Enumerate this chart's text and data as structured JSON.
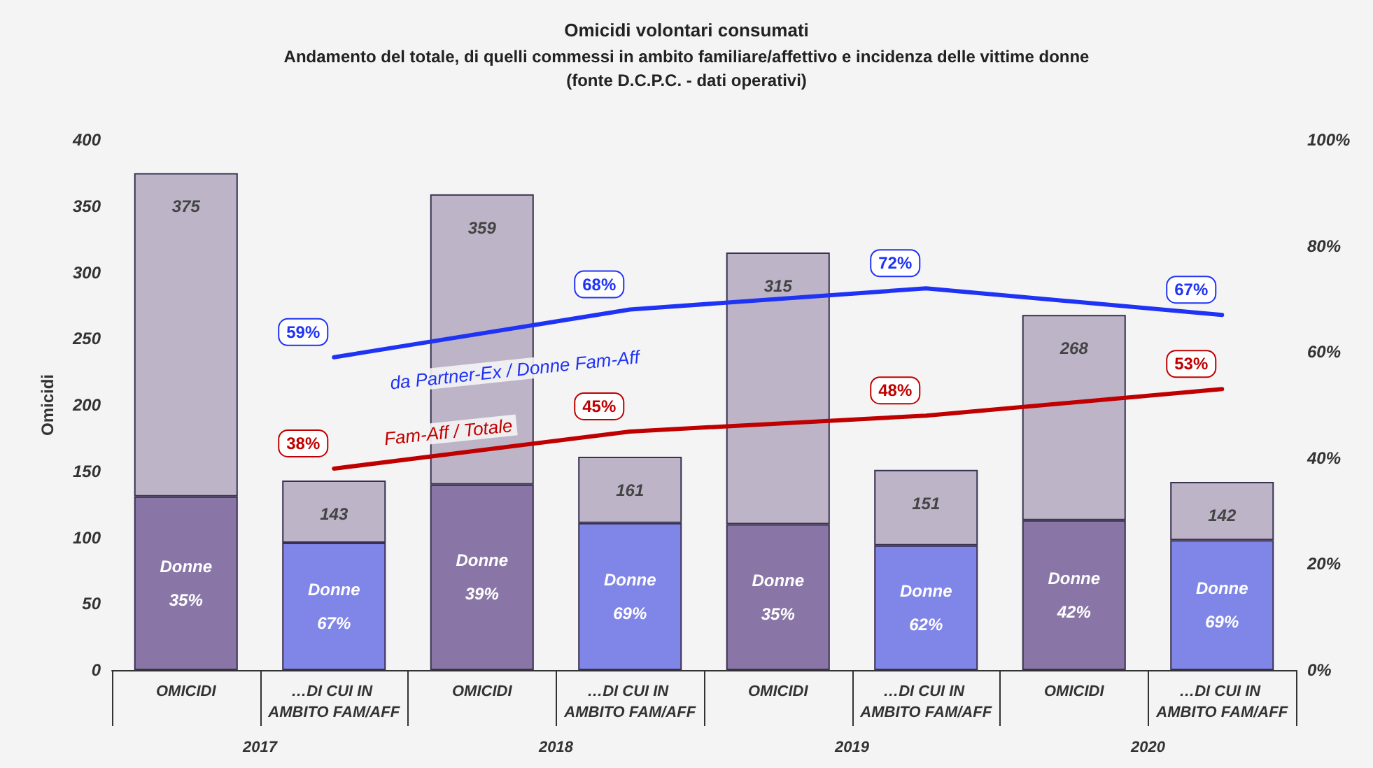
{
  "chart_data": {
    "type": "bar",
    "title": "Omicidi volontari consumati",
    "subtitle": "Andamento del totale, di quelli commessi in ambito familiare/affettivo e incidenza delle vittime donne\n(fonte D.C.P.C. - dati operativi)",
    "ylabel": "Omicidi",
    "categories": [
      "OMICIDI",
      "…DI CUI IN AMBITO FAM/AFF",
      "OMICIDI",
      "…DI CUI IN AMBITO FAM/AFF",
      "OMICIDI",
      "…DI CUI IN AMBITO FAM/AFF",
      "OMICIDI",
      "…DI CUI IN AMBITO FAM/AFF"
    ],
    "annotations": [
      "2017",
      "2018",
      "2019",
      "2020"
    ],
    "stacked": true,
    "series": [
      {
        "colors": [
          "#8a76a6",
          "#7f86e8",
          "#8a76a6",
          "#7f86e8",
          "#8a76a6",
          "#7f86e8",
          "#8a76a6",
          "#7f86e8"
        ],
        "values": [
          131,
          96,
          140,
          111,
          110,
          94,
          113,
          98
        ],
        "value_labels": [
          "Donne\n35%",
          "Donne\n67%",
          "Donne\n39%",
          "Donne\n69%",
          "Donne\n35%",
          "Donne\n62%",
          "Donne\n42%",
          "Donne\n69%"
        ]
      },
      {
        "color": "#bdb4c8",
        "values": [
          244,
          47,
          219,
          50,
          205,
          57,
          155,
          44
        ]
      },
      {
        "name": "da Partner-Ex / Donne Fam-Aff",
        "type": "line",
        "axis": "y2",
        "color": "#1f33f5",
        "values": [
          null,
          59,
          null,
          68,
          null,
          72,
          null,
          67
        ],
        "value_labels": [
          null,
          "59%",
          null,
          "68%",
          null,
          "72%",
          null,
          "67%"
        ]
      },
      {
        "name": "Fam-Aff / Totale",
        "type": "line",
        "axis": "y2",
        "color": "#c00000",
        "values": [
          null,
          38,
          null,
          45,
          null,
          48,
          null,
          53
        ],
        "value_labels": [
          null,
          "38%",
          null,
          "45%",
          null,
          "48%",
          null,
          "53%"
        ]
      }
    ],
    "totals": [
      "375",
      "143",
      "359",
      "161",
      "315",
      "151",
      "268",
      "142"
    ],
    "ylim": [
      0,
      400
    ],
    "yticks": [
      0,
      50,
      100,
      150,
      200,
      250,
      300,
      350,
      400
    ],
    "y2lim": [
      0,
      100
    ],
    "y2ticks": [
      {
        "value": 0,
        "label": "0%"
      },
      {
        "value": 20,
        "label": "20%"
      },
      {
        "value": 40,
        "label": "40%"
      },
      {
        "value": 60,
        "label": "60%"
      },
      {
        "value": 80,
        "label": "80%"
      },
      {
        "value": 100,
        "label": "100%"
      }
    ],
    "marker": "none",
    "line_style": "solid"
  }
}
